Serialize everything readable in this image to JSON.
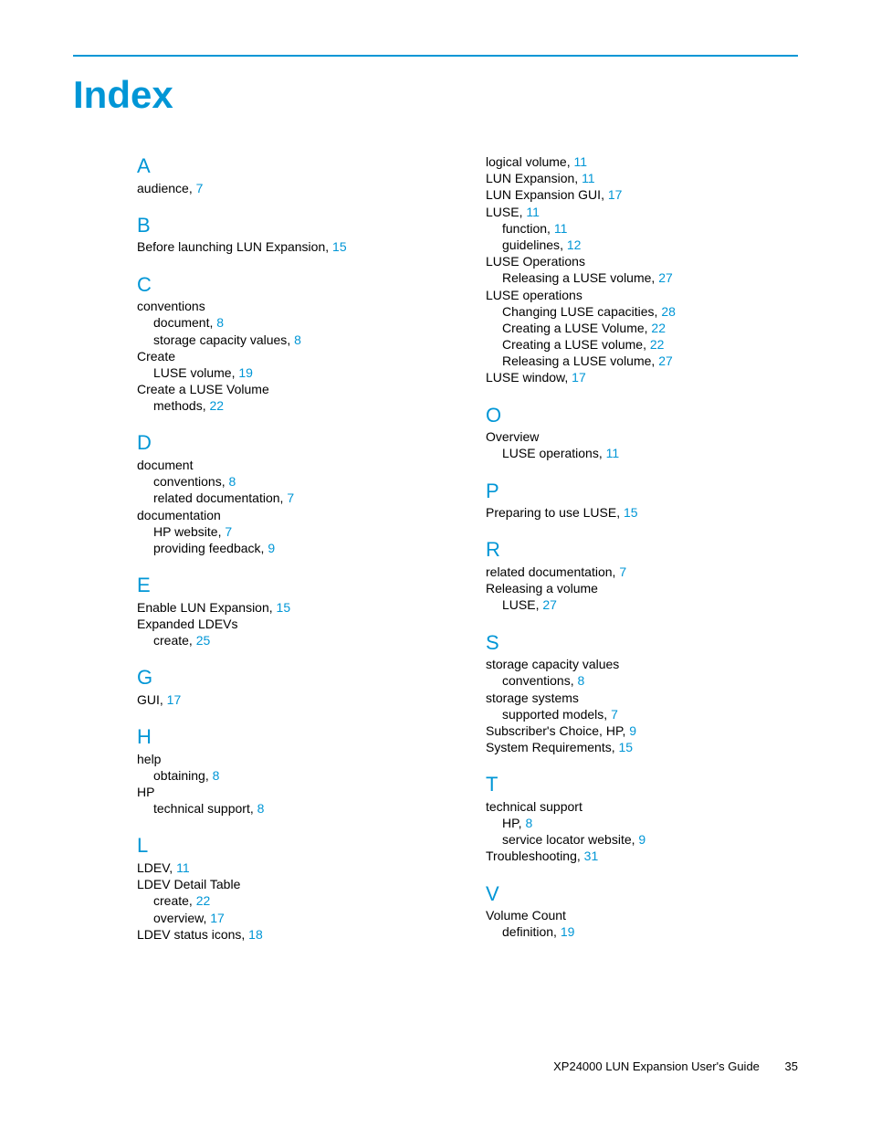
{
  "colors": {
    "accent": "#0096d6",
    "text": "#000000",
    "background": "#ffffff"
  },
  "title": "Index",
  "footer": {
    "doc": "XP24000 LUN Expansion User's Guide",
    "page": "35"
  },
  "col1": [
    {
      "letter": "A"
    },
    {
      "t": "audience",
      "p": "7"
    },
    {
      "letter": "B"
    },
    {
      "t": "Before launching LUN Expansion",
      "p": "15"
    },
    {
      "letter": "C"
    },
    {
      "t": "conventions"
    },
    {
      "t": "document",
      "p": "8",
      "s": 1
    },
    {
      "t": "storage capacity values",
      "p": "8",
      "s": 1
    },
    {
      "t": "Create"
    },
    {
      "t": "LUSE volume",
      "p": "19",
      "s": 1
    },
    {
      "t": "Create a LUSE Volume"
    },
    {
      "t": "methods",
      "p": "22",
      "s": 1
    },
    {
      "letter": "D"
    },
    {
      "t": "document"
    },
    {
      "t": "conventions",
      "p": "8",
      "s": 1
    },
    {
      "t": "related documentation",
      "p": "7",
      "s": 1
    },
    {
      "t": "documentation"
    },
    {
      "t": "HP website",
      "p": "7",
      "s": 1
    },
    {
      "t": "providing feedback",
      "p": "9",
      "s": 1
    },
    {
      "letter": "E"
    },
    {
      "t": "Enable LUN Expansion",
      "p": "15"
    },
    {
      "t": "Expanded LDEVs"
    },
    {
      "t": "create",
      "p": "25",
      "s": 1
    },
    {
      "letter": "G"
    },
    {
      "t": "GUI",
      "p": "17"
    },
    {
      "letter": "H"
    },
    {
      "t": "help"
    },
    {
      "t": "obtaining",
      "p": "8",
      "s": 1
    },
    {
      "t": "HP"
    },
    {
      "t": "technical support",
      "p": "8",
      "s": 1
    },
    {
      "letter": "L"
    },
    {
      "t": "LDEV",
      "p": "11"
    },
    {
      "t": "LDEV Detail Table"
    },
    {
      "t": "create",
      "p": "22",
      "s": 1
    },
    {
      "t": "overview",
      "p": "17",
      "s": 1
    },
    {
      "t": "LDEV status icons",
      "p": "18"
    }
  ],
  "col2": [
    {
      "t": "logical volume",
      "p": "11"
    },
    {
      "t": "LUN Expansion",
      "p": "11"
    },
    {
      "t": "LUN Expansion GUI",
      "p": "17"
    },
    {
      "t": "LUSE",
      "p": "11"
    },
    {
      "t": "function",
      "p": "11",
      "s": 1
    },
    {
      "t": "guidelines",
      "p": "12",
      "s": 1
    },
    {
      "t": "LUSE Operations"
    },
    {
      "t": "Releasing a LUSE volume",
      "p": "27",
      "s": 1
    },
    {
      "t": "LUSE operations"
    },
    {
      "t": "Changing LUSE capacities",
      "p": "28",
      "s": 1
    },
    {
      "t": "Creating a LUSE Volume",
      "p": "22",
      "s": 1
    },
    {
      "t": "Creating a LUSE volume",
      "p": "22",
      "s": 1
    },
    {
      "t": "Releasing a LUSE volume",
      "p": "27",
      "s": 1
    },
    {
      "t": "LUSE window",
      "p": "17"
    },
    {
      "letter": "O"
    },
    {
      "t": "Overview"
    },
    {
      "t": "LUSE operations",
      "p": "11",
      "s": 1
    },
    {
      "letter": "P"
    },
    {
      "t": "Preparing to use LUSE",
      "p": "15"
    },
    {
      "letter": "R"
    },
    {
      "t": "related documentation",
      "p": "7"
    },
    {
      "t": "Releasing a volume"
    },
    {
      "t": "LUSE",
      "p": "27",
      "s": 1
    },
    {
      "letter": "S"
    },
    {
      "t": "storage capacity values"
    },
    {
      "t": "conventions",
      "p": "8",
      "s": 1
    },
    {
      "t": "storage systems"
    },
    {
      "t": "supported models",
      "p": "7",
      "s": 1
    },
    {
      "t": "Subscriber's Choice, HP",
      "p": "9"
    },
    {
      "t": "System Requirements",
      "p": "15"
    },
    {
      "letter": "T"
    },
    {
      "t": "technical support"
    },
    {
      "t": "HP",
      "p": "8",
      "s": 1
    },
    {
      "t": "service locator website",
      "p": "9",
      "s": 1
    },
    {
      "t": "Troubleshooting",
      "p": "31"
    },
    {
      "letter": "V"
    },
    {
      "t": "Volume Count"
    },
    {
      "t": "definition",
      "p": "19",
      "s": 1
    }
  ]
}
